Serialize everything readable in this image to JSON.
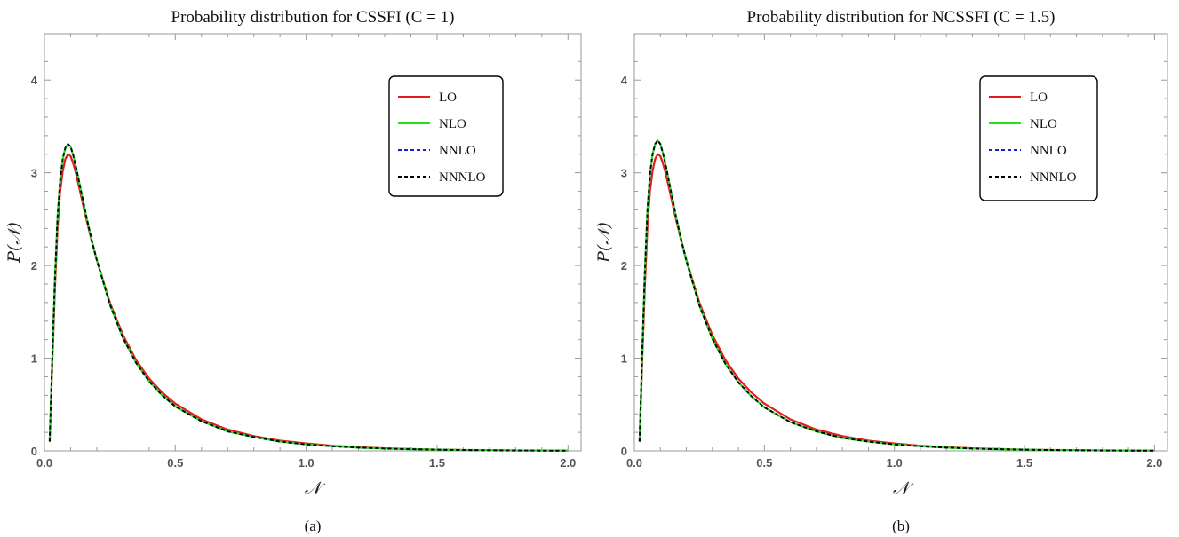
{
  "chart_data": [
    {
      "type": "line",
      "title": "Probability distribution for CSSFI (C = 1)",
      "xlabel": "𝒩",
      "ylabel": "P(𝒩)",
      "caption": "(a)",
      "xlim": [
        0,
        2.05
      ],
      "ylim": [
        0,
        4.5
      ],
      "x_ticks": [
        0.0,
        0.5,
        1.0,
        1.5,
        2.0
      ],
      "x_tick_labels": [
        "0.0",
        "0.5",
        "1.0",
        "1.5",
        "2.0"
      ],
      "y_ticks": [
        0,
        1,
        2,
        3,
        4
      ],
      "y_tick_labels": [
        "0",
        "1",
        "2",
        "3",
        "4"
      ],
      "legend_position": "top-right",
      "x": [
        0.02,
        0.03,
        0.04,
        0.05,
        0.06,
        0.07,
        0.08,
        0.09,
        0.1,
        0.11,
        0.12,
        0.14,
        0.16,
        0.18,
        0.2,
        0.25,
        0.3,
        0.35,
        0.4,
        0.45,
        0.5,
        0.6,
        0.7,
        0.8,
        0.9,
        1.0,
        1.1,
        1.2,
        1.3,
        1.4,
        1.5,
        1.6,
        1.7,
        1.8,
        1.9,
        2.0
      ],
      "series": [
        {
          "name": "LO",
          "color": "#e41a1c",
          "dash": "solid",
          "values": [
            0.1,
            0.95,
            1.75,
            2.4,
            2.8,
            3.02,
            3.15,
            3.2,
            3.18,
            3.1,
            3.0,
            2.75,
            2.5,
            2.27,
            2.06,
            1.6,
            1.25,
            0.98,
            0.78,
            0.63,
            0.51,
            0.34,
            0.23,
            0.16,
            0.11,
            0.08,
            0.055,
            0.04,
            0.028,
            0.02,
            0.014,
            0.01,
            0.007,
            0.005,
            0.004,
            0.003
          ]
        },
        {
          "name": "NLO",
          "color": "#22e21a",
          "dash": "solid",
          "values": [
            0.1,
            1.0,
            1.85,
            2.52,
            2.92,
            3.15,
            3.27,
            3.31,
            3.28,
            3.19,
            3.07,
            2.8,
            2.53,
            2.28,
            2.06,
            1.58,
            1.22,
            0.95,
            0.75,
            0.6,
            0.48,
            0.32,
            0.21,
            0.15,
            0.1,
            0.07,
            0.05,
            0.035,
            0.025,
            0.018,
            0.013,
            0.009,
            0.006,
            0.004,
            0.003,
            0.002
          ]
        },
        {
          "name": "NNLO",
          "color": "#1a1ae2",
          "dash": "dashed",
          "values": [
            0.1,
            1.0,
            1.85,
            2.52,
            2.92,
            3.15,
            3.27,
            3.31,
            3.28,
            3.19,
            3.07,
            2.8,
            2.53,
            2.28,
            2.06,
            1.58,
            1.22,
            0.95,
            0.75,
            0.6,
            0.48,
            0.32,
            0.21,
            0.15,
            0.1,
            0.07,
            0.05,
            0.035,
            0.025,
            0.018,
            0.013,
            0.009,
            0.006,
            0.004,
            0.003,
            0.002
          ]
        },
        {
          "name": "NNNLO",
          "color": "#000000",
          "dash": "dashed",
          "values": [
            0.1,
            1.0,
            1.85,
            2.52,
            2.92,
            3.15,
            3.27,
            3.31,
            3.28,
            3.19,
            3.07,
            2.8,
            2.53,
            2.28,
            2.06,
            1.58,
            1.22,
            0.95,
            0.75,
            0.6,
            0.48,
            0.32,
            0.21,
            0.15,
            0.1,
            0.07,
            0.05,
            0.035,
            0.025,
            0.018,
            0.013,
            0.009,
            0.006,
            0.004,
            0.003,
            0.002
          ]
        }
      ]
    },
    {
      "type": "line",
      "title": "Probability distribution for NCSSFI (C = 1.5)",
      "xlabel": "𝒩",
      "ylabel": "P(𝒩)",
      "caption": "(b)",
      "xlim": [
        0,
        2.05
      ],
      "ylim": [
        0,
        4.5
      ],
      "x_ticks": [
        0.0,
        0.5,
        1.0,
        1.5,
        2.0
      ],
      "x_tick_labels": [
        "0.0",
        "0.5",
        "1.0",
        "1.5",
        "2.0"
      ],
      "y_ticks": [
        0,
        1,
        2,
        3,
        4
      ],
      "y_tick_labels": [
        "0",
        "1",
        "2",
        "3",
        "4"
      ],
      "legend_position": "top-right",
      "x": [
        0.02,
        0.03,
        0.04,
        0.05,
        0.06,
        0.07,
        0.08,
        0.09,
        0.1,
        0.11,
        0.12,
        0.14,
        0.16,
        0.18,
        0.2,
        0.25,
        0.3,
        0.35,
        0.4,
        0.45,
        0.5,
        0.6,
        0.7,
        0.8,
        0.9,
        1.0,
        1.1,
        1.2,
        1.3,
        1.4,
        1.5,
        1.6,
        1.7,
        1.8,
        1.9,
        2.0
      ],
      "series": [
        {
          "name": "LO",
          "color": "#e41a1c",
          "dash": "solid",
          "values": [
            0.1,
            0.95,
            1.75,
            2.4,
            2.8,
            3.02,
            3.15,
            3.2,
            3.18,
            3.1,
            3.0,
            2.75,
            2.5,
            2.27,
            2.06,
            1.6,
            1.25,
            0.98,
            0.78,
            0.63,
            0.51,
            0.34,
            0.23,
            0.16,
            0.11,
            0.08,
            0.055,
            0.04,
            0.028,
            0.02,
            0.014,
            0.01,
            0.007,
            0.005,
            0.004,
            0.003
          ]
        },
        {
          "name": "NLO",
          "color": "#22e21a",
          "dash": "solid",
          "values": [
            0.1,
            1.02,
            1.9,
            2.58,
            2.98,
            3.2,
            3.31,
            3.35,
            3.31,
            3.21,
            3.09,
            2.81,
            2.53,
            2.28,
            2.05,
            1.57,
            1.21,
            0.94,
            0.74,
            0.59,
            0.47,
            0.31,
            0.21,
            0.14,
            0.1,
            0.07,
            0.05,
            0.035,
            0.025,
            0.018,
            0.013,
            0.009,
            0.006,
            0.004,
            0.003,
            0.002
          ]
        },
        {
          "name": "NNLO",
          "color": "#1a1ae2",
          "dash": "dashed",
          "values": [
            0.1,
            1.02,
            1.9,
            2.58,
            2.98,
            3.2,
            3.31,
            3.35,
            3.31,
            3.21,
            3.09,
            2.81,
            2.53,
            2.28,
            2.05,
            1.57,
            1.21,
            0.94,
            0.74,
            0.59,
            0.47,
            0.31,
            0.21,
            0.14,
            0.1,
            0.07,
            0.05,
            0.035,
            0.025,
            0.018,
            0.013,
            0.009,
            0.006,
            0.004,
            0.003,
            0.002
          ]
        },
        {
          "name": "NNNLO",
          "color": "#000000",
          "dash": "dashed",
          "values": [
            0.1,
            1.02,
            1.9,
            2.58,
            2.98,
            3.2,
            3.31,
            3.35,
            3.31,
            3.21,
            3.09,
            2.81,
            2.53,
            2.28,
            2.05,
            1.57,
            1.21,
            0.94,
            0.74,
            0.59,
            0.47,
            0.31,
            0.21,
            0.14,
            0.1,
            0.07,
            0.05,
            0.035,
            0.025,
            0.018,
            0.013,
            0.009,
            0.006,
            0.004,
            0.003,
            0.002
          ]
        }
      ]
    }
  ]
}
